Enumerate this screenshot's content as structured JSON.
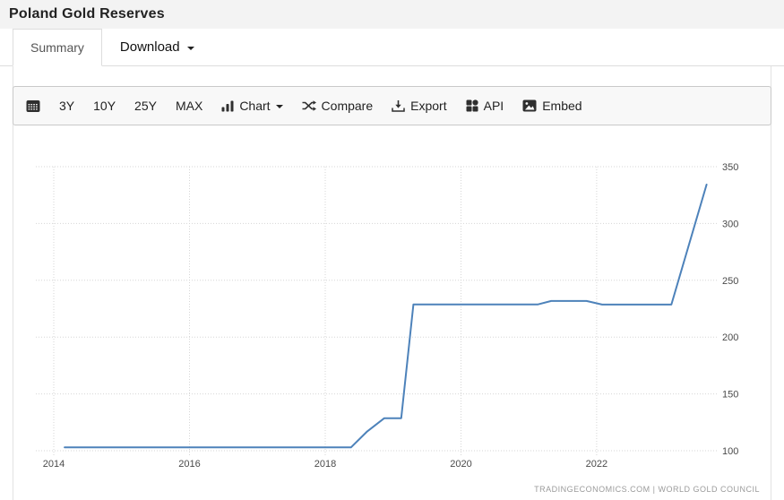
{
  "header": {
    "title": "Poland Gold Reserves"
  },
  "tabs": {
    "summary": "Summary",
    "download": "Download"
  },
  "toolbar": {
    "range_3y": "3Y",
    "range_10y": "10Y",
    "range_25y": "25Y",
    "range_max": "MAX",
    "chart": "Chart",
    "compare": "Compare",
    "export": "Export",
    "api": "API",
    "embed": "Embed",
    "icons": [
      "calendar-icon",
      "bar-chart-icon",
      "chevron-down-icon",
      "shuffle-icon",
      "download-icon",
      "grid-icon",
      "image-icon"
    ]
  },
  "chart_data": {
    "type": "line",
    "title": "Poland Gold Reserves",
    "series": [
      {
        "name": "Poland Gold Reserves",
        "points": [
          [
            2014.16,
            102.9
          ],
          [
            2018.38,
            102.9
          ],
          [
            2018.62,
            117.0
          ],
          [
            2018.87,
            128.6
          ],
          [
            2019.12,
            128.6
          ],
          [
            2019.3,
            228.7
          ],
          [
            2021.13,
            228.7
          ],
          [
            2021.33,
            231.8
          ],
          [
            2021.85,
            231.8
          ],
          [
            2022.08,
            228.6
          ],
          [
            2023.1,
            228.6
          ],
          [
            2023.62,
            334.2
          ]
        ]
      }
    ],
    "x_ticks": [
      2014,
      2016,
      2018,
      2020,
      2022
    ],
    "y_ticks": [
      100,
      150,
      200,
      250,
      300,
      350
    ],
    "xlim": [
      2013.736,
      2023.77
    ],
    "ylim": [
      100,
      350
    ],
    "xlabel": "",
    "ylabel": "",
    "legend": "none",
    "grid": "dotted",
    "line_color": "#4d82ba",
    "grid_color": "#d6d6d6",
    "y_axis_side": "right"
  },
  "footer": {
    "credit": "TRADINGECONOMICS.COM | WORLD GOLD COUNCIL"
  }
}
